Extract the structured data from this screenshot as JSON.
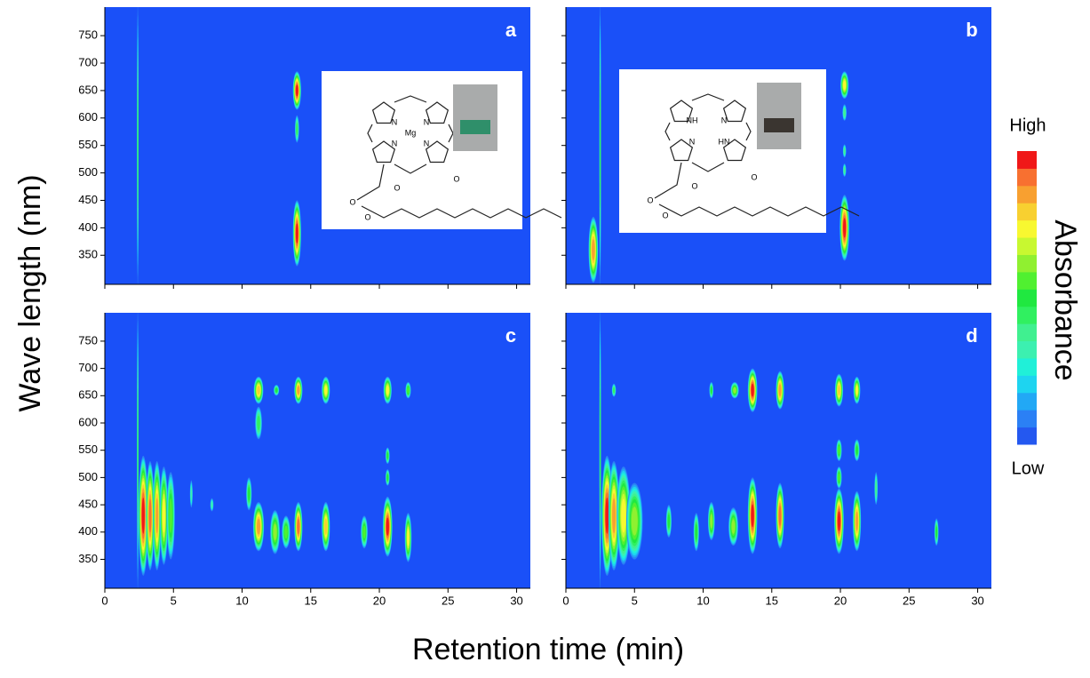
{
  "figure": {
    "xlabel": "Retention time (min)",
    "ylabel": "Wave length (nm)"
  },
  "colorbar": {
    "title": "Absorbance",
    "high": "High",
    "low": "Low",
    "colors": [
      "#2458f0",
      "#2b80f5",
      "#22a8f5",
      "#1ed4f0",
      "#20f0d8",
      "#3cf0b0",
      "#40f090",
      "#30f060",
      "#20e840",
      "#50f030",
      "#90f030",
      "#c8f830",
      "#f8f830",
      "#f8d030",
      "#f8a030",
      "#f87030",
      "#f01818"
    ]
  },
  "chart_data": [
    {
      "type": "contour",
      "panel_label": "a",
      "background": "#1a50f8",
      "xlim": [
        0,
        31
      ],
      "ylim": [
        297,
        802
      ],
      "xticks": [
        0,
        5,
        10,
        15,
        20,
        25,
        30
      ],
      "yticks": [
        350,
        400,
        450,
        500,
        550,
        600,
        650,
        700,
        750
      ],
      "tick_labels": {
        "x": false,
        "y": true
      },
      "inset": {
        "atoms": [
          "N",
          "N",
          "N",
          "N",
          "Mg",
          "O",
          "O",
          "O",
          "O"
        ]
      },
      "x": [
        2.4,
        14.0,
        14.0,
        14.0
      ],
      "y": [
        550,
        650,
        580,
        390
      ],
      "widths": [
        0.06,
        0.3,
        0.15,
        0.3
      ],
      "heights": [
        255,
        35,
        25,
        60
      ],
      "values": [
        7,
        16,
        7,
        16
      ]
    },
    {
      "type": "contour",
      "panel_label": "b",
      "background": "#1a50f8",
      "xlim": [
        0,
        31
      ],
      "ylim": [
        297,
        802
      ],
      "xticks": [
        0,
        5,
        10,
        15,
        20,
        25,
        30
      ],
      "yticks": [
        350,
        400,
        450,
        500,
        550,
        600,
        650,
        700,
        750
      ],
      "tick_labels": {
        "x": false,
        "y": false
      },
      "inset": {
        "atoms": [
          "NH",
          "N",
          "HN",
          "N",
          "O",
          "O",
          "O",
          "O"
        ]
      },
      "x": [
        2.5,
        2.0,
        20.3,
        20.3,
        20.3,
        20.3,
        20.3
      ],
      "y": [
        550,
        360,
        660,
        610,
        540,
        505,
        400
      ],
      "widths": [
        0.06,
        0.35,
        0.3,
        0.15,
        0.12,
        0.12,
        0.35
      ],
      "heights": [
        255,
        60,
        25,
        15,
        12,
        12,
        60
      ],
      "values": [
        7,
        14,
        12,
        6,
        6,
        6,
        16
      ]
    },
    {
      "type": "contour",
      "panel_label": "c",
      "background": "#1a50f8",
      "xlim": [
        0,
        31
      ],
      "ylim": [
        297,
        802
      ],
      "xticks": [
        0,
        5,
        10,
        15,
        20,
        25,
        30
      ],
      "yticks": [
        350,
        400,
        450,
        500,
        550,
        600,
        650,
        700,
        750
      ],
      "tick_labels": {
        "x": true,
        "y": true
      },
      "x": [
        2.4,
        2.8,
        3.3,
        3.8,
        4.3,
        4.8,
        11.2,
        11.2,
        11.2,
        12.4,
        13.2,
        14.1,
        14.1,
        16.1,
        16.1,
        18.9,
        20.6,
        20.6,
        20.6,
        20.6,
        22.1,
        22.1,
        12.5,
        10.5,
        6.3,
        7.8
      ],
      "y": [
        550,
        430,
        430,
        430,
        430,
        430,
        660,
        600,
        410,
        400,
        400,
        660,
        410,
        660,
        410,
        400,
        660,
        540,
        500,
        410,
        660,
        390,
        660,
        470,
        470,
        450
      ],
      "widths": [
        0.06,
        0.35,
        0.3,
        0.3,
        0.3,
        0.3,
        0.35,
        0.25,
        0.4,
        0.35,
        0.3,
        0.3,
        0.3,
        0.3,
        0.3,
        0.25,
        0.3,
        0.15,
        0.15,
        0.35,
        0.2,
        0.25,
        0.2,
        0.2,
        0.1,
        0.12
      ],
      "heights": [
        255,
        110,
        100,
        100,
        90,
        80,
        25,
        30,
        45,
        40,
        30,
        25,
        45,
        25,
        45,
        30,
        25,
        15,
        15,
        55,
        15,
        45,
        10,
        30,
        25,
        12
      ],
      "values": [
        7,
        16,
        15,
        14,
        12,
        9,
        13,
        7,
        14,
        10,
        9,
        14,
        15,
        12,
        13,
        9,
        12,
        8,
        8,
        16,
        9,
        12,
        8,
        8,
        5,
        5
      ]
    },
    {
      "type": "contour",
      "panel_label": "d",
      "background": "#1a50f8",
      "xlim": [
        0,
        31
      ],
      "ylim": [
        297,
        802
      ],
      "xticks": [
        0,
        5,
        10,
        15,
        20,
        25,
        30
      ],
      "yticks": [
        350,
        400,
        450,
        500,
        550,
        600,
        650,
        700,
        750
      ],
      "tick_labels": {
        "x": true,
        "y": false
      },
      "x": [
        2.5,
        3.0,
        3.5,
        4.2,
        5.0,
        13.6,
        13.6,
        15.6,
        15.6,
        19.9,
        19.9,
        19.9,
        19.9,
        21.2,
        21.2,
        21.2,
        10.6,
        9.5,
        12.2,
        7.5,
        10.6,
        12.3,
        27.0,
        22.6,
        3.5
      ],
      "y": [
        550,
        430,
        430,
        430,
        420,
        660,
        430,
        660,
        430,
        660,
        550,
        500,
        420,
        660,
        550,
        420,
        420,
        400,
        410,
        420,
        660,
        660,
        400,
        480,
        660
      ],
      "widths": [
        0.06,
        0.4,
        0.4,
        0.5,
        0.6,
        0.35,
        0.35,
        0.3,
        0.3,
        0.3,
        0.2,
        0.2,
        0.35,
        0.25,
        0.2,
        0.3,
        0.25,
        0.2,
        0.35,
        0.2,
        0.15,
        0.3,
        0.15,
        0.12,
        0.15
      ],
      "heights": [
        255,
        110,
        100,
        90,
        70,
        40,
        70,
        35,
        60,
        30,
        20,
        20,
        60,
        25,
        20,
        55,
        35,
        35,
        35,
        30,
        15,
        15,
        25,
        30,
        12
      ],
      "values": [
        7,
        16,
        14,
        12,
        10,
        16,
        16,
        14,
        15,
        13,
        9,
        9,
        16,
        12,
        8,
        14,
        10,
        8,
        10,
        8,
        8,
        10,
        8,
        6,
        7
      ]
    }
  ]
}
